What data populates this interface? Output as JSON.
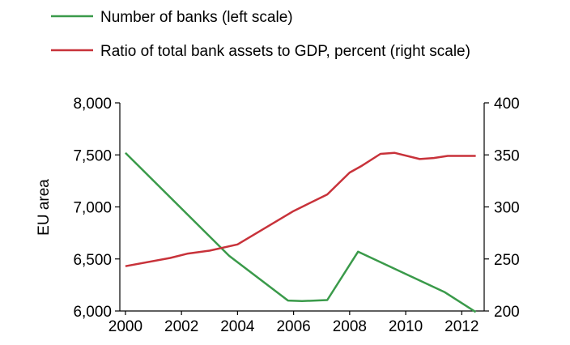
{
  "chart_data": {
    "type": "line",
    "ylabel": "EU area",
    "legend": [
      {
        "label": "Number of banks (left scale)",
        "color": "#3a9a4a"
      },
      {
        "label": "Ratio of total bank assets to GDP, percent (right scale)",
        "color": "#c8323a"
      }
    ],
    "x_ticks": [
      "2000",
      "2002",
      "2004",
      "2006",
      "2008",
      "2010",
      "2012"
    ],
    "y_left_ticks": [
      "6,000",
      "6,500",
      "7,000",
      "7,500",
      "8,000"
    ],
    "y_right_ticks": [
      "200",
      "250",
      "300",
      "350",
      "400"
    ],
    "xlim": [
      1999.8,
      2012.8
    ],
    "ylim_left": [
      6000,
      8000
    ],
    "ylim_right": [
      200,
      400
    ],
    "legend_position": "top-left, above plot",
    "grid": false,
    "series": [
      {
        "name": "Number of banks (left scale)",
        "axis": "left",
        "color": "#3a9a4a",
        "x": [
          2000,
          2003.7,
          2005.8,
          2006.3,
          2007.2,
          2008.3,
          2011.4,
          2012.5
        ],
        "values": [
          7520,
          6530,
          6100,
          6095,
          6105,
          6570,
          6180,
          5990
        ]
      },
      {
        "name": "Ratio of total bank assets to GDP, percent (right scale)",
        "axis": "right",
        "color": "#c8323a",
        "x": [
          2000,
          2001.6,
          2002.2,
          2003.0,
          2004.0,
          2005.0,
          2006.0,
          2007.2,
          2008.0,
          2008.4,
          2009.1,
          2009.6,
          2010.5,
          2011.0,
          2011.5,
          2012.5
        ],
        "values": [
          243,
          251,
          255,
          258,
          264,
          280,
          296,
          312,
          333,
          339,
          351,
          352,
          346,
          347,
          349,
          349
        ]
      }
    ]
  }
}
